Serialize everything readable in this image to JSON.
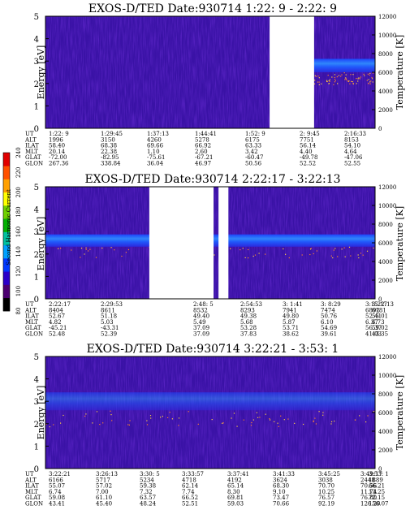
{
  "chart_data": {
    "type": "heatmap",
    "panels": [
      {
        "title": "EXOS-D/TED   Date:930714  1:22: 9 - 2:22: 9",
        "ylabel": "Energy [eV]",
        "y2label": "Temperature [K]",
        "ylim": [
          0,
          5
        ],
        "y2lim": [
          0,
          12000
        ],
        "y_ticks": [
          "0",
          "1",
          "2",
          "3",
          "4",
          "5"
        ],
        "y2_ticks": [
          "0",
          "2000",
          "4000",
          "6000",
          "8000",
          "10000",
          "12000"
        ],
        "gaps": [
          [
            0.68,
            0.815
          ]
        ],
        "band": {
          "start": 0.815,
          "end": 1.0,
          "y_center": 2.8,
          "height": 0.6
        },
        "table": {
          "rows": [
            {
              "label": "UT",
              "values": [
                "1:22: 9",
                "1:29:45",
                "1:37:13",
                "1:44:41",
                "1:52: 9",
                "",
                "2: 9:45",
                "2:16:33"
              ]
            },
            {
              "label": "ALT",
              "values": [
                "1996",
                "3150",
                "4260",
                "5278",
                "6175",
                "",
                "7751",
                "8153"
              ]
            },
            {
              "label": "ILAT",
              "values": [
                "58.40",
                "68.38",
                "69.66",
                "66.92",
                "63.33",
                "",
                "56.14",
                "54.10"
              ]
            },
            {
              "label": "MLT",
              "values": [
                "20.14",
                "22.38",
                "1.10",
                "2.60",
                "3.42",
                "",
                "4.40",
                "4.64"
              ]
            },
            {
              "label": "GLAT",
              "values": [
                "-72.00",
                "-82.95",
                "-75.61",
                "-67.21",
                "-60.47",
                "",
                "-49.78",
                "-47.06"
              ]
            },
            {
              "label": "GLON",
              "values": [
                "267.36",
                "338.84",
                "36.04",
                "46.97",
                "50.56",
                "",
                "52.52",
                "52.55"
              ]
            }
          ]
        }
      },
      {
        "title": "EXOS-D/TED   Date:930714  2:22:17 - 3:22:13",
        "ylabel": "Energy [eV]",
        "y2label": "Temperature [K]",
        "ylim": [
          0,
          5
        ],
        "y2lim": [
          0,
          12000
        ],
        "y_ticks": [
          "0",
          "1",
          "2",
          "3",
          "4",
          "5"
        ],
        "y2_ticks": [
          "0",
          "2000",
          "4000",
          "6000",
          "8000",
          "10000",
          "12000"
        ],
        "gaps": [
          [
            0.315,
            0.51
          ],
          [
            0.525,
            0.555
          ]
        ],
        "band": {
          "start": 0.0,
          "end": 1.0,
          "y_center": 2.6,
          "height": 0.55
        },
        "table": {
          "rows": [
            {
              "label": "UT",
              "values": [
                "2:22:17",
                "2:29:53",
                "",
                "2:48: 5",
                "2:54:53",
                "3: 1:41",
                "3: 8:29",
                "3:15:17",
                "3:22:13"
              ]
            },
            {
              "label": "ALT",
              "values": [
                "8404",
                "8611",
                "",
                "8532",
                "8293",
                "7941",
                "7474",
                "6892",
                "6181"
              ]
            },
            {
              "label": "ILAT",
              "values": [
                "52.67",
                "51.18",
                "",
                "49.40",
                "49.38",
                "49.80",
                "50.76",
                "52.41",
                "55.01"
              ]
            },
            {
              "label": "MLT",
              "values": [
                "4.82",
                "5.03",
                "",
                "5.49",
                "5.68",
                "5.87",
                "6.10",
                "6.37",
                "6.73"
              ]
            },
            {
              "label": "GLAT",
              "values": [
                "-45.21",
                "-43.31",
                "",
                "37.09",
                "53.28",
                "53.71",
                "54.69",
                "56.37",
                "59.02"
              ]
            },
            {
              "label": "GLON",
              "values": [
                "52.48",
                "52.39",
                "",
                "37.09",
                "37.83",
                "38.62",
                "39.61",
                "41.03",
                "43.35"
              ]
            }
          ]
        }
      },
      {
        "title": "EXOS-D/TED   Date:930714  3:22:21 - 3:53: 1",
        "ylabel": "Energy [eV]",
        "y2label": "Temperature [K]",
        "ylim": [
          0,
          5
        ],
        "y2lim": [
          0,
          12000
        ],
        "y_ticks": [
          "0",
          "1",
          "2",
          "3",
          "4",
          "5"
        ],
        "y2_ticks": [
          "0",
          "2000",
          "4000",
          "6000",
          "8000",
          "10000",
          "12000"
        ],
        "gaps": [],
        "band": {
          "start": 0.0,
          "end": 1.0,
          "y_center": 3.0,
          "height": 0.8
        },
        "table": {
          "rows": [
            {
              "label": "UT",
              "values": [
                "3:22:21",
                "3:26:13",
                "3:30: 5",
                "3:33:57",
                "3:37:41",
                "3:41:33",
                "3:45:25",
                "3:49:17",
                "3:53: 1"
              ]
            },
            {
              "label": "ALT",
              "values": [
                "6166",
                "5717",
                "5234",
                "4718",
                "4192",
                "3624",
                "3038",
                "2448",
                "1889"
              ]
            },
            {
              "label": "ILAT",
              "values": [
                "55.07",
                "57.02",
                "59.38",
                "62.14",
                "65.14",
                "68.30",
                "70.70",
                "70.56",
                "66.21"
              ]
            },
            {
              "label": "MLT",
              "values": [
                "6.74",
                "7.00",
                "7.32",
                "7.74",
                "8.30",
                "9.10",
                "10.25",
                "11.74",
                "13.25"
              ]
            },
            {
              "label": "GLAT",
              "values": [
                "59.08",
                "61.10",
                "63.57",
                "66.52",
                "69.81",
                "73.47",
                "76.57",
                "76.80",
                "72.15"
              ]
            },
            {
              "label": "GLON",
              "values": [
                "43.41",
                "45.40",
                "48.24",
                "52.51",
                "59.03",
                "70.66",
                "92.19",
                "126.20",
                "156.07"
              ]
            }
          ]
        }
      }
    ],
    "colorbar": {
      "label": "Second Harmonic Current",
      "ticks": [
        "80",
        "100",
        "120",
        "140",
        "160",
        "180",
        "200",
        "220",
        "240"
      ],
      "colors": [
        "#000000",
        "#4b0070",
        "#2a00c8",
        "#0038ff",
        "#00a0ff",
        "#00c0a0",
        "#00b000",
        "#70d000",
        "#ffff00",
        "#ffa000",
        "#ff5000",
        "#e00000"
      ]
    }
  }
}
